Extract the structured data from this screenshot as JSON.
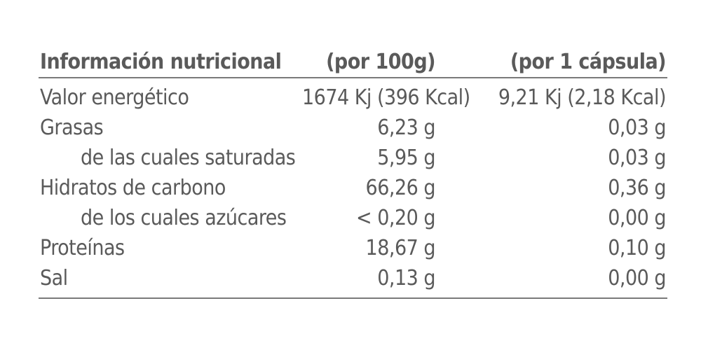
{
  "table": {
    "header": [
      "Información nutricional",
      "(por 100g)",
      "(por 1 cápsula)"
    ],
    "rows": [
      [
        "Valor energético",
        "1674 Kj (396 Kcal)",
        "9,21 Kj (2,18 Kcal)"
      ],
      [
        "Grasas",
        "6,23 g",
        "0,03 g"
      ],
      [
        "de las cuales saturadas",
        "5,95 g",
        "0,03 g"
      ],
      [
        "Hidratos de carbono",
        "66,26 g",
        "0,36 g"
      ],
      [
        "de los cuales azúcares",
        "< 0,20 g",
        "0,00 g"
      ],
      [
        "Proteínas",
        "18,67 g",
        "0,10 g"
      ],
      [
        "Sal",
        "0,13 g",
        "0,00 g"
      ]
    ]
  }
}
